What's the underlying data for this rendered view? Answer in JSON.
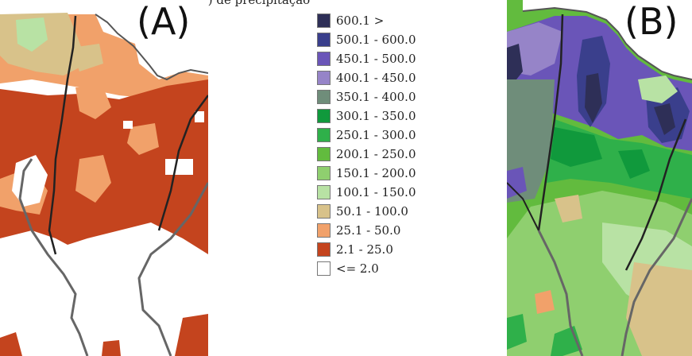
{
  "caption_fragment": ") e precipitação média anual de  (B) de precipitação",
  "panels": {
    "a": {
      "label": "(A)"
    },
    "b": {
      "label": "(B)"
    }
  },
  "legend": {
    "items": [
      {
        "label": "600.1 >",
        "color": "#2e2f57"
      },
      {
        "label": "500.1 - 600.0",
        "color": "#3a3f8c"
      },
      {
        "label": "450.1 - 500.0",
        "color": "#6a55b8"
      },
      {
        "label": "400.1 - 450.0",
        "color": "#9684c8"
      },
      {
        "label": "350.1 - 400.0",
        "color": "#6f8d7a"
      },
      {
        "label": "300.1 - 350.0",
        "color": "#10993c"
      },
      {
        "label": "250.1 - 300.0",
        "color": "#2fb04a"
      },
      {
        "label": "200.1 - 250.0",
        "color": "#62bb3e"
      },
      {
        "label": "150.1 - 200.0",
        "color": "#8fcf6f"
      },
      {
        "label": "100.1 - 150.0",
        "color": "#b8e2a4"
      },
      {
        "label": "50.1 - 100.0",
        "color": "#d8c28a"
      },
      {
        "label": "25.1 - 50.0",
        "color": "#f1a16a"
      },
      {
        "label": "2.1 - 25.0",
        "color": "#c4441e"
      },
      {
        "label": "<= 2.0",
        "color": "#ffffff"
      }
    ]
  }
}
